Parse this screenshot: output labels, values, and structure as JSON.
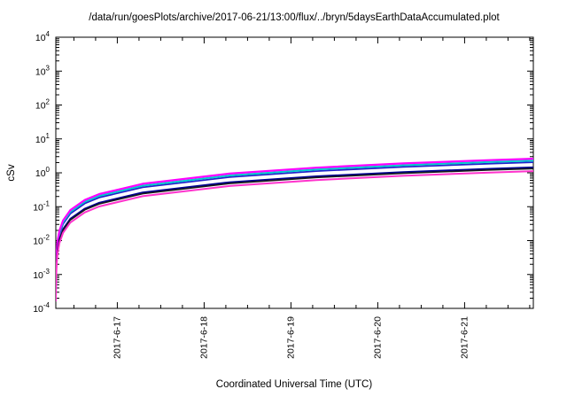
{
  "page": {
    "background": "#ffffff"
  },
  "chart_data": {
    "type": "line",
    "title": "/data/run/goesPlots/archive/2017-06-21/13:00/flux/../bryn/5daysEarthDataAccumulated.plot",
    "xlabel": "Coordinated Universal Time (UTC)",
    "ylabel": "cSv",
    "y_scale": "log",
    "ylim": [
      0.0001,
      10000
    ],
    "ytick_exponents": [
      -4,
      -3,
      -2,
      -1,
      0,
      1,
      2,
      3,
      4
    ],
    "grid": false,
    "legend": "none",
    "x_range_hours": [
      0,
      132
    ],
    "x_major_ticks": [
      {
        "hours": 17,
        "label": "2017-6-17"
      },
      {
        "hours": 41,
        "label": "2017-6-18"
      },
      {
        "hours": 65,
        "label": "2017-6-19"
      },
      {
        "hours": 89,
        "label": "2017-6-20"
      },
      {
        "hours": 113,
        "label": "2017-6-21"
      }
    ],
    "x_minor_step_hours": 6,
    "x_hours": [
      0.02,
      0.05,
      0.1,
      0.25,
      0.5,
      1,
      2,
      4,
      8,
      12,
      24,
      48,
      72,
      96,
      120,
      132
    ],
    "series": [
      {
        "name": "blue-upper",
        "color": "#2222cc",
        "width": 1.8,
        "values": [
          0.0003106,
          0.0007765,
          0.001553,
          0.003883,
          0.007765,
          0.01553,
          0.03106,
          0.06212,
          0.1242,
          0.1864,
          0.3727,
          0.7455,
          1.118,
          1.491,
          1.864,
          2.05
        ]
      },
      {
        "name": "cyan",
        "color": "#00cccc",
        "width": 2.0,
        "values": [
          0.0003485,
          0.0008712,
          0.001742,
          0.004356,
          0.008712,
          0.01742,
          0.03485,
          0.0697,
          0.1394,
          0.2091,
          0.4182,
          0.8364,
          1.255,
          1.673,
          2.091,
          2.3
        ]
      },
      {
        "name": "magenta-upper",
        "color": "#ff00ff",
        "width": 2.2,
        "values": [
          0.000394,
          0.000985,
          0.00197,
          0.004924,
          0.009848,
          0.0197,
          0.03939,
          0.07879,
          0.1576,
          0.2364,
          0.4727,
          0.9455,
          1.418,
          1.891,
          2.364,
          2.6
        ]
      },
      {
        "name": "navy",
        "color": "#000090",
        "width": 1.8,
        "values": [
          0.0002197,
          0.0005492,
          0.001098,
          0.002746,
          0.005492,
          0.01098,
          0.02197,
          0.04394,
          0.08788,
          0.1318,
          0.2636,
          0.5273,
          0.7909,
          1.055,
          1.318,
          1.45
        ]
      },
      {
        "name": "black",
        "color": "#181818",
        "width": 1.6,
        "values": [
          0.0002015,
          0.0005038,
          0.001008,
          0.002519,
          0.005038,
          0.01008,
          0.02015,
          0.0403,
          0.0806,
          0.1209,
          0.2418,
          0.4836,
          0.7255,
          0.9673,
          1.209,
          1.33
        ]
      },
      {
        "name": "magenta-lower",
        "color": "#ff33cc",
        "width": 2.0,
        "values": [
          0.0001697,
          0.0004242,
          0.0008485,
          0.002121,
          0.004242,
          0.008485,
          0.01697,
          0.03394,
          0.06788,
          0.1018,
          0.2036,
          0.4073,
          0.6109,
          0.8145,
          1.018,
          1.12
        ]
      }
    ]
  }
}
